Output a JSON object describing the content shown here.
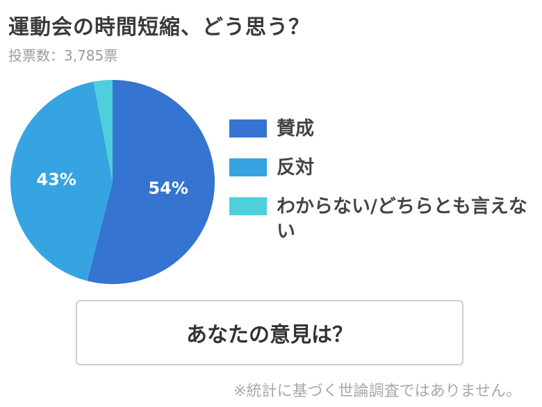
{
  "header": {
    "title": "運動会の時間短縮、どう思う？",
    "votes_text": "投票数：3,785票"
  },
  "chart_data": {
    "type": "pie",
    "slices": [
      {
        "label": "賛成",
        "value": 54,
        "display": "54%",
        "color": "#3574d0"
      },
      {
        "label": "反対",
        "value": 43,
        "display": "43%",
        "color": "#36a4e0"
      },
      {
        "label": "わからない/どちらとも言えない",
        "value": 3,
        "display": "",
        "color": "#4dcfdc"
      }
    ],
    "legend_position": "right"
  },
  "legend": {
    "items": [
      {
        "label": "賛成",
        "color": "#3574d0"
      },
      {
        "label": "反対",
        "color": "#36a4e0"
      },
      {
        "label": "わからない/どちらとも言えない",
        "color": "#4dcfdc"
      }
    ]
  },
  "button": {
    "label": "あなたの意見は？"
  },
  "footer": {
    "disclaimer": "※統計に基づく世論調査ではありません。"
  }
}
